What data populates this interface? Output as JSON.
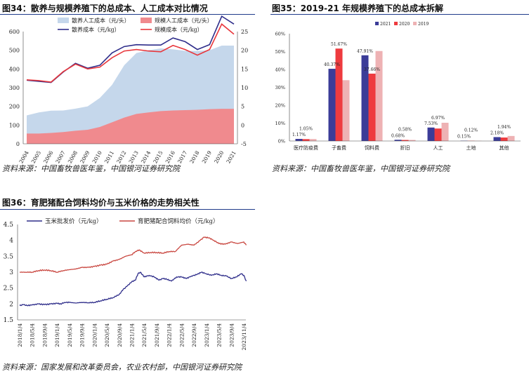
{
  "panels": {
    "p34": {
      "title": "图34：散养与规模养殖下的总成本、人工成本对比情况",
      "source": "资料来源：中国畜牧兽医年鉴，中国银河证券研究院"
    },
    "p35": {
      "title": "图35：2019-21 年规模养殖下的总成本拆解",
      "source": "资料来源：中国畜牧兽医年鉴，中国银河证券研究院"
    },
    "p36": {
      "title": "图36：育肥猪配合饲料均价与玉米价格的走势相关性",
      "source": "资料来源：国家发展和改革委员会，农业农村部，中国银河证券研究院"
    }
  },
  "chart_data": [
    {
      "id": "chart34",
      "type": "area",
      "categories": [
        "2004",
        "2005",
        "2006",
        "2007",
        "2008",
        "2009",
        "2010",
        "2011",
        "2012",
        "2013",
        "2014",
        "2015",
        "2016",
        "2017",
        "2018",
        "2019",
        "2020",
        "2021"
      ],
      "y_left": {
        "min": 0,
        "max": 600,
        "ticks": [
          "0",
          "100",
          "200",
          "300",
          "400",
          "500",
          "600"
        ]
      },
      "y_right": {
        "min": -5,
        "max": 25,
        "ticks": [
          "-5",
          "0",
          "5",
          "10",
          "15",
          "20",
          "25"
        ]
      },
      "series": [
        {
          "name": "散养人工成本（元/头）",
          "kind": "area",
          "axis": "left",
          "color": "#c5d7eb",
          "values": [
            152,
            168,
            177,
            178,
            188,
            200,
            245,
            315,
            420,
            485,
            500,
            510,
            505,
            497,
            497,
            500,
            525,
            525
          ]
        },
        {
          "name": "规模人工成本（元/头）",
          "kind": "area",
          "axis": "left",
          "color": "#f08a8e",
          "values": [
            55,
            55,
            58,
            63,
            70,
            75,
            90,
            115,
            140,
            160,
            168,
            175,
            178,
            180,
            182,
            185,
            187,
            187
          ]
        },
        {
          "name": "散养成本（元/kg）",
          "kind": "line",
          "axis": "right",
          "color": "#2e2d8a",
          "values": [
            12.0,
            11.7,
            11.4,
            14.2,
            16.5,
            15.2,
            16.0,
            19.3,
            21.0,
            21.5,
            21.4,
            21.4,
            23.3,
            22.3,
            20.2,
            21.5,
            29.1,
            27.0
          ]
        },
        {
          "name": "规模成本（元/kg）",
          "kind": "line",
          "axis": "right",
          "color": "#e8373c",
          "values": [
            12.1,
            11.9,
            11.5,
            14.3,
            16.3,
            15.0,
            15.5,
            18.0,
            19.8,
            20.2,
            19.8,
            19.6,
            21.3,
            20.2,
            18.7,
            20.2,
            27.0,
            24.3
          ]
        }
      ]
    },
    {
      "id": "chart35",
      "type": "bar",
      "categories": [
        "医疗防疫费",
        "子畜费",
        "饲料费",
        "折旧",
        "人工",
        "土地",
        "其他"
      ],
      "ylim": [
        0,
        60
      ],
      "y_ticks": [
        "0%",
        "10%",
        "20%",
        "30%",
        "40%",
        "50%",
        "60%"
      ],
      "series": [
        {
          "name": "2021",
          "color": "#3b3c98",
          "values": [
            1.17,
            40.37,
            47.91,
            0.68,
            7.53,
            0.15,
            2.18
          ]
        },
        {
          "name": "2020",
          "color": "#ee3b3f",
          "values": [
            1.05,
            51.67,
            37.66,
            0.58,
            6.97,
            0.12,
            1.94
          ]
        },
        {
          "name": "2019",
          "color": "#eeb2b4",
          "values": [
            1.1,
            34.0,
            50.3,
            0.6,
            10.2,
            0.1,
            2.8
          ]
        }
      ],
      "data_labels": [
        {
          "cat": 0,
          "text": "1.17%"
        },
        {
          "cat": 0,
          "text": "1.05%"
        },
        {
          "cat": 1,
          "text": "40.37%"
        },
        {
          "cat": 1,
          "text": "51.67%"
        },
        {
          "cat": 2,
          "text": "47.91%"
        },
        {
          "cat": 2,
          "text": "37.66%"
        },
        {
          "cat": 3,
          "text": "0.68%"
        },
        {
          "cat": 3,
          "text": "0.58%"
        },
        {
          "cat": 4,
          "text": "7.53%"
        },
        {
          "cat": 4,
          "text": "6.97%"
        },
        {
          "cat": 5,
          "text": "0.15%"
        },
        {
          "cat": 5,
          "text": "0.12%"
        },
        {
          "cat": 6,
          "text": "2.18%"
        },
        {
          "cat": 6,
          "text": "1.94%"
        }
      ]
    },
    {
      "id": "chart36",
      "type": "line",
      "x_ticks": [
        "2018/1/4",
        "2018/5/4",
        "2018/9/4",
        "2019/1/4",
        "2019/5/4",
        "2019/9/4",
        "2020/1/4",
        "2020/5/4",
        "2020/9/4",
        "2021/1/4",
        "2021/5/4",
        "2021/9/4",
        "2022/1/4",
        "2022/5/4",
        "2022/9/4",
        "2023/1/4",
        "2023/5/4",
        "2023/9/4",
        "2023/11/4"
      ],
      "ylim": [
        1.5,
        4.5
      ],
      "y_ticks": [
        "1.5",
        "2",
        "2.5",
        "3",
        "3.5",
        "4",
        "4.5"
      ],
      "series": [
        {
          "name": "玉米批发价（元/kg）",
          "color": "#2e2d8a",
          "points": [
            [
              0,
              1.95
            ],
            [
              0.3,
              1.98
            ],
            [
              0.6,
              1.95
            ],
            [
              1,
              1.97
            ],
            [
              1.5,
              2.0
            ],
            [
              2,
              1.98
            ],
            [
              2.5,
              2.0
            ],
            [
              3,
              2.02
            ],
            [
              3.3,
              2.0
            ],
            [
              3.6,
              2.05
            ],
            [
              4,
              2.05
            ],
            [
              4.5,
              2.03
            ],
            [
              5,
              2.05
            ],
            [
              5.5,
              2.04
            ],
            [
              6,
              2.05
            ],
            [
              6.5,
              2.1
            ],
            [
              7,
              2.15
            ],
            [
              7.5,
              2.2
            ],
            [
              8,
              2.3
            ],
            [
              8.3,
              2.45
            ],
            [
              8.6,
              2.55
            ],
            [
              9,
              2.7
            ],
            [
              9.3,
              2.75
            ],
            [
              9.5,
              2.95
            ],
            [
              9.7,
              3.0
            ],
            [
              10,
              2.85
            ],
            [
              10.4,
              2.9
            ],
            [
              10.8,
              2.85
            ],
            [
              11.2,
              2.75
            ],
            [
              11.5,
              2.8
            ],
            [
              11.8,
              2.78
            ],
            [
              12.2,
              2.72
            ],
            [
              12.6,
              2.85
            ],
            [
              13,
              2.85
            ],
            [
              13.4,
              2.8
            ],
            [
              13.8,
              2.88
            ],
            [
              14.2,
              2.92
            ],
            [
              14.6,
              3.0
            ],
            [
              15,
              2.95
            ],
            [
              15.4,
              2.9
            ],
            [
              15.8,
              2.95
            ],
            [
              16.2,
              2.9
            ],
            [
              16.6,
              2.88
            ],
            [
              17,
              2.8
            ],
            [
              17.4,
              2.85
            ],
            [
              17.8,
              2.95
            ],
            [
              18,
              2.9
            ],
            [
              18.2,
              2.72
            ]
          ]
        },
        {
          "name": "育肥猪配合饲料均价（元/kg）",
          "color": "#c94740",
          "points": [
            [
              0,
              3.0
            ],
            [
              0.5,
              3.0
            ],
            [
              1,
              3.0
            ],
            [
              1.5,
              3.05
            ],
            [
              2,
              3.07
            ],
            [
              2.5,
              3.05
            ],
            [
              3,
              3.0
            ],
            [
              3.5,
              3.05
            ],
            [
              4,
              3.08
            ],
            [
              4.5,
              3.1
            ],
            [
              5,
              3.15
            ],
            [
              5.5,
              3.15
            ],
            [
              6,
              3.18
            ],
            [
              6.5,
              3.22
            ],
            [
              7,
              3.25
            ],
            [
              7.5,
              3.35
            ],
            [
              8,
              3.4
            ],
            [
              8.5,
              3.5
            ],
            [
              9,
              3.55
            ],
            [
              9.3,
              3.65
            ],
            [
              9.6,
              3.7
            ],
            [
              10,
              3.6
            ],
            [
              10.5,
              3.62
            ],
            [
              11,
              3.62
            ],
            [
              11.5,
              3.6
            ],
            [
              12,
              3.65
            ],
            [
              12.5,
              3.65
            ],
            [
              13,
              3.85
            ],
            [
              13.5,
              3.88
            ],
            [
              14,
              3.85
            ],
            [
              14.5,
              4.0
            ],
            [
              14.8,
              4.1
            ],
            [
              15.2,
              4.08
            ],
            [
              15.6,
              4.0
            ],
            [
              16,
              3.9
            ],
            [
              16.5,
              3.88
            ],
            [
              17,
              3.95
            ],
            [
              17.5,
              3.9
            ],
            [
              18,
              3.95
            ],
            [
              18.2,
              3.85
            ]
          ]
        }
      ]
    }
  ]
}
